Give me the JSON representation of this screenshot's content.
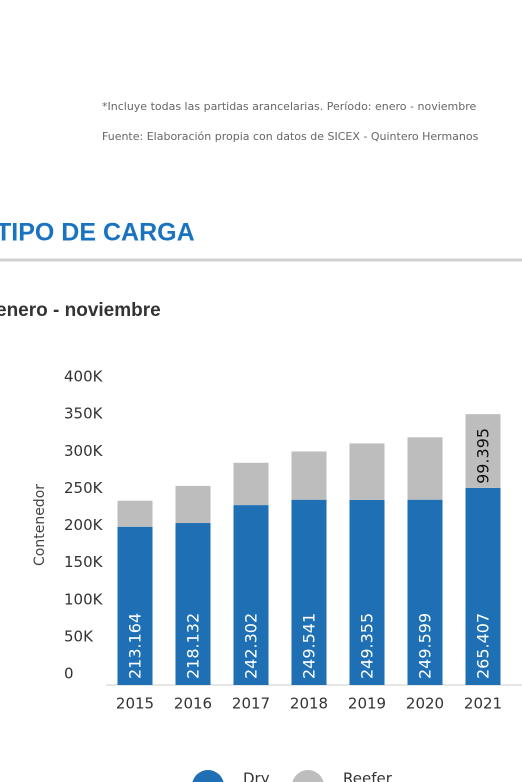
{
  "chart_data": {
    "type": "stacked_bar",
    "notes": [
      "*Incluye todas las partidas arancelarias. Período: enero - noviembre",
      "Fuente: Elaboración propia con datos de SICEX - Quintero Hermanos"
    ],
    "title": "TIPO DE CARGA",
    "subtitle": "enero - noviembre",
    "y_label": "Contenedor",
    "categories": [
      "2015",
      "2016",
      "2017",
      "2018",
      "2019",
      "2020",
      "2021"
    ],
    "series": [
      {
        "name": "Dry",
        "color": "#1f6fb5",
        "values": [
          213164,
          218132,
          242302,
          249541,
          249355,
          249599,
          265407
        ],
        "value_labels": [
          "213.164",
          "218.132",
          "242.302",
          "249.541",
          "249.355",
          "249.599",
          "265.407"
        ]
      },
      {
        "name": "Reefer",
        "color": "#bdbdbd",
        "values": [
          35000,
          50000,
          57000,
          65000,
          76000,
          84000,
          99395
        ],
        "value_labels": [
          null,
          null,
          null,
          null,
          null,
          null,
          "99.395"
        ]
      }
    ],
    "ylim": [
      0,
      400000
    ],
    "yticks": [
      0,
      {
        "value": 50000,
        "label": "50K"
      },
      {
        "value": 100000,
        "label": "100K"
      },
      {
        "value": 150000,
        "label": "150K"
      },
      {
        "value": 200000,
        "label": "200K"
      },
      {
        "value": 250000,
        "label": "250K"
      },
      {
        "value": 300000,
        "label": "300K"
      },
      {
        "value": 350000,
        "label": "350K"
      },
      {
        "value": 400000,
        "label": "400K"
      }
    ],
    "legend": "bottom"
  }
}
